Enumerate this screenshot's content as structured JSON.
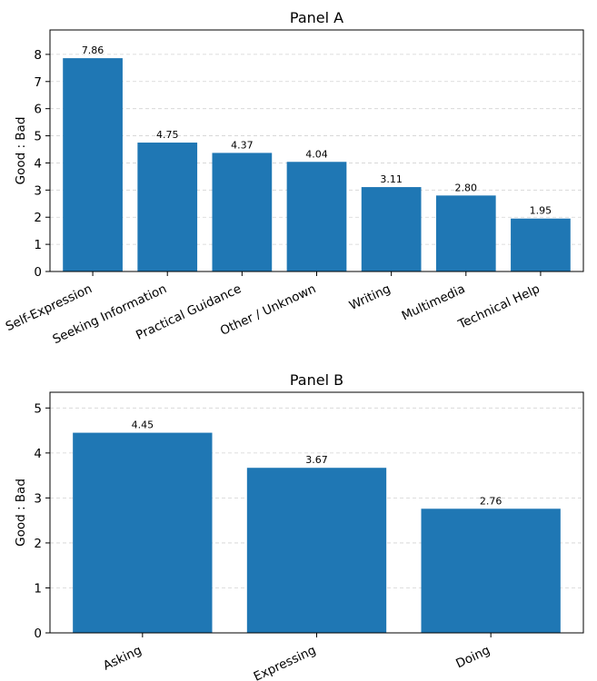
{
  "chart_data": [
    {
      "type": "bar",
      "title": "Panel A",
      "ylabel": "Good : Bad",
      "xlabel": "",
      "categories": [
        "Self-Expression",
        "Seeking Information",
        "Practical Guidance",
        "Other / Unknown",
        "Writing",
        "Multimedia",
        "Technical Help"
      ],
      "values": [
        7.86,
        4.75,
        4.37,
        4.04,
        3.11,
        2.8,
        1.95
      ],
      "data_labels": [
        "7.86",
        "4.75",
        "4.37",
        "4.04",
        "3.11",
        "2.80",
        "1.95"
      ],
      "ylim": [
        0,
        8.9
      ],
      "yticks": [
        0,
        1,
        2,
        3,
        4,
        5,
        6,
        7,
        8
      ],
      "grid": true,
      "bar_color": "#1f77b4"
    },
    {
      "type": "bar",
      "title": "Panel B",
      "ylabel": "Good : Bad",
      "xlabel": "",
      "categories": [
        "Asking",
        "Expressing",
        "Doing"
      ],
      "values": [
        4.45,
        3.67,
        2.76
      ],
      "data_labels": [
        "4.45",
        "3.67",
        "2.76"
      ],
      "ylim": [
        0,
        5.35
      ],
      "yticks": [
        0,
        1,
        2,
        3,
        4,
        5
      ],
      "grid": true,
      "bar_color": "#1f77b4"
    }
  ]
}
